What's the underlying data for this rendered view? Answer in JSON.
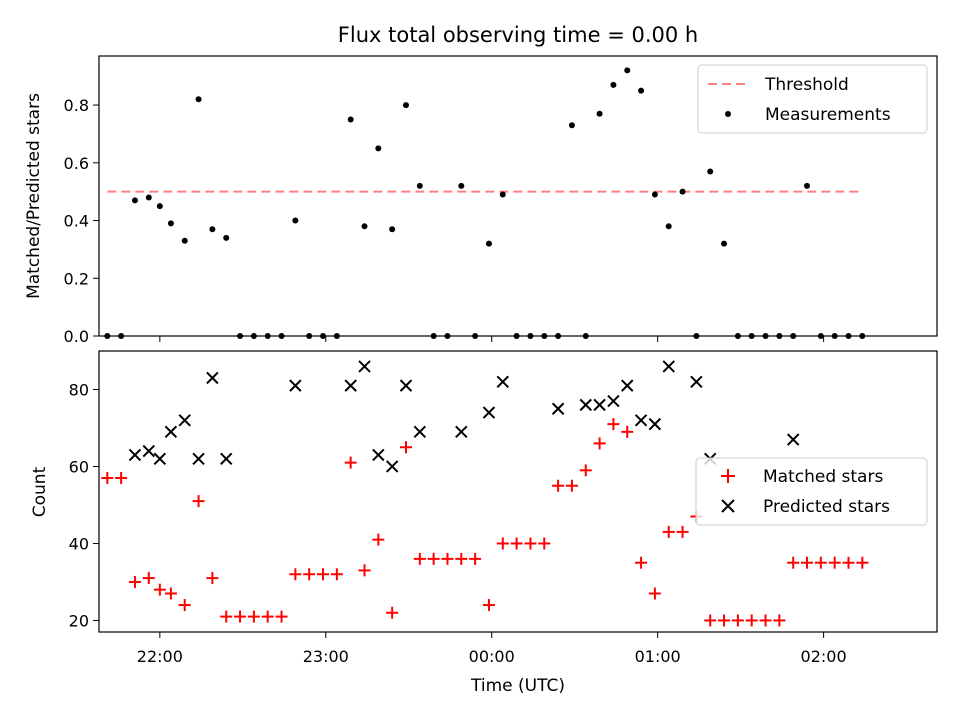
{
  "chart_data": [
    {
      "type": "scatter",
      "title": "Flux total observing time = 0.00 h",
      "xlabel": "",
      "ylabel": "Matched/Predicted stars",
      "xlim": [
        "21:38",
        "02:41"
      ],
      "ylim": [
        0,
        0.97
      ],
      "x_ticks": [
        "22:00",
        "23:00",
        "00:00",
        "01:00",
        "02:00"
      ],
      "y_ticks": [
        "0.0",
        "0.2",
        "0.4",
        "0.6",
        "0.8"
      ],
      "y_tick_values": [
        0,
        0.2,
        0.4,
        0.6,
        0.8
      ],
      "legend_position": "top-right",
      "series": [
        {
          "name": "Threshold",
          "kind": "dashed-line",
          "color": "#ff7f7f",
          "x": [
            "21:41",
            "02:13"
          ],
          "y": [
            0.5,
            0.5
          ]
        },
        {
          "name": "Measurements",
          "kind": "points",
          "color": "#000000",
          "x": [
            "21:41",
            "21:46",
            "21:51",
            "21:56",
            "22:00",
            "22:04",
            "22:09",
            "22:14",
            "22:19",
            "22:24",
            "22:29",
            "22:34",
            "22:39",
            "22:44",
            "22:49",
            "22:54",
            "22:59",
            "23:04",
            "23:09",
            "23:14",
            "23:19",
            "23:24",
            "23:29",
            "23:34",
            "23:39",
            "23:44",
            "23:49",
            "23:54",
            "23:59",
            "24:04",
            "24:09",
            "24:14",
            "24:19",
            "24:24",
            "24:29",
            "24:34",
            "24:39",
            "24:44",
            "24:49",
            "24:54",
            "24:59",
            "25:04",
            "25:09",
            "25:14",
            "25:19",
            "25:24",
            "25:29",
            "25:34",
            "25:39",
            "25:44",
            "25:49",
            "25:54",
            "25:59",
            "26:04",
            "26:09",
            "26:14"
          ],
          "y": [
            0.0,
            0.0,
            0.47,
            0.48,
            0.45,
            0.39,
            0.33,
            0.82,
            0.37,
            0.34,
            0.0,
            0.0,
            0.0,
            0.0,
            0.4,
            0.0,
            0.0,
            0.0,
            0.75,
            0.38,
            0.65,
            0.37,
            0.8,
            0.52,
            0.0,
            0.0,
            0.52,
            0.0,
            0.32,
            0.49,
            0.0,
            0.0,
            0.0,
            0.0,
            0.73,
            0.0,
            0.77,
            0.87,
            0.92,
            0.85,
            0.49,
            0.38,
            0.5,
            0.0,
            0.57,
            0.32,
            0.0,
            0.0,
            0.0,
            0.0,
            0.0,
            0.52,
            0.0,
            0.0,
            0.0,
            0.0
          ]
        }
      ]
    },
    {
      "type": "scatter",
      "title": "",
      "xlabel": "Time (UTC)",
      "ylabel": "Count",
      "xlim": [
        "21:38",
        "02:41"
      ],
      "ylim": [
        17,
        90
      ],
      "x_ticks": [
        "22:00",
        "23:00",
        "00:00",
        "01:00",
        "02:00"
      ],
      "y_ticks": [
        "20",
        "40",
        "60",
        "80"
      ],
      "y_tick_values": [
        20,
        40,
        60,
        80
      ],
      "legend_position": "center-right",
      "series": [
        {
          "name": "Matched stars",
          "marker": "plus",
          "color": "#ff0000",
          "x": [
            "21:41",
            "21:46",
            "21:51",
            "21:56",
            "22:00",
            "22:04",
            "22:09",
            "22:14",
            "22:19",
            "22:24",
            "22:29",
            "22:34",
            "22:39",
            "22:44",
            "22:49",
            "22:54",
            "22:59",
            "23:04",
            "23:09",
            "23:14",
            "23:19",
            "23:24",
            "23:29",
            "23:34",
            "23:39",
            "23:44",
            "23:49",
            "23:54",
            "23:59",
            "24:04",
            "24:09",
            "24:14",
            "24:19",
            "24:24",
            "24:29",
            "24:34",
            "24:39",
            "24:44",
            "24:49",
            "24:54",
            "24:59",
            "25:04",
            "25:09",
            "25:14",
            "25:19",
            "25:24",
            "25:29",
            "25:34",
            "25:39",
            "25:44",
            "25:49",
            "25:54",
            "25:59",
            "26:04",
            "26:09",
            "26:14"
          ],
          "y": [
            57,
            57,
            30,
            31,
            28,
            27,
            24,
            51,
            31,
            21,
            21,
            21,
            21,
            21,
            32,
            32,
            32,
            32,
            61,
            33,
            41,
            22,
            65,
            36,
            36,
            36,
            36,
            36,
            24,
            40,
            40,
            40,
            40,
            55,
            55,
            59,
            66,
            71,
            69,
            35,
            27,
            43,
            43,
            47,
            20,
            20,
            20,
            20,
            20,
            20,
            35,
            35,
            35,
            35,
            35,
            35
          ]
        },
        {
          "name": "Predicted stars",
          "marker": "x",
          "color": "#000000",
          "x": [
            "21:51",
            "21:56",
            "22:00",
            "22:04",
            "22:09",
            "22:14",
            "22:19",
            "22:24",
            "22:49",
            "23:09",
            "23:14",
            "23:19",
            "23:24",
            "23:29",
            "23:34",
            "23:49",
            "23:59",
            "24:04",
            "24:24",
            "24:34",
            "24:39",
            "24:44",
            "24:49",
            "24:54",
            "24:59",
            "25:04",
            "25:14",
            "25:19",
            "25:49"
          ],
          "y": [
            63,
            64,
            62,
            69,
            72,
            62,
            83,
            62,
            81,
            81,
            86,
            63,
            60,
            81,
            69,
            69,
            74,
            82,
            75,
            76,
            76,
            77,
            81,
            72,
            71,
            86,
            82,
            62,
            67
          ]
        }
      ]
    }
  ]
}
